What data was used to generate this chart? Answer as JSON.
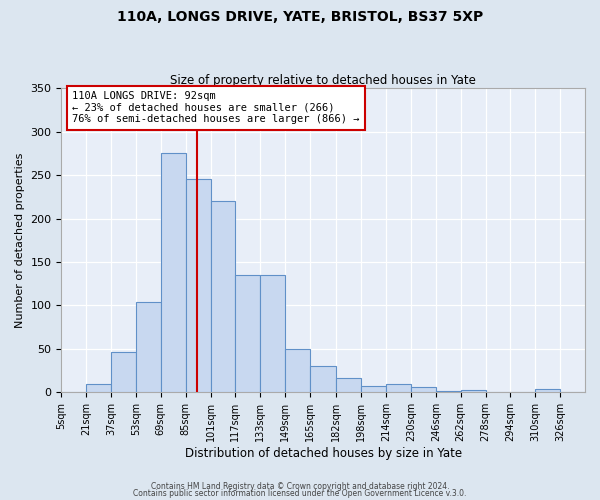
{
  "title1": "110A, LONGS DRIVE, YATE, BRISTOL, BS37 5XP",
  "title2": "Size of property relative to detached houses in Yate",
  "xlabel": "Distribution of detached houses by size in Yate",
  "ylabel": "Number of detached properties",
  "bin_labels": [
    "5sqm",
    "21sqm",
    "37sqm",
    "53sqm",
    "69sqm",
    "85sqm",
    "101sqm",
    "117sqm",
    "133sqm",
    "149sqm",
    "165sqm",
    "182sqm",
    "198sqm",
    "214sqm",
    "230sqm",
    "246sqm",
    "262sqm",
    "278sqm",
    "294sqm",
    "310sqm",
    "326sqm"
  ],
  "bin_edges": [
    5,
    21,
    37,
    53,
    69,
    85,
    101,
    117,
    133,
    149,
    165,
    182,
    198,
    214,
    230,
    246,
    262,
    278,
    294,
    310,
    326,
    342
  ],
  "bar_heights": [
    0,
    10,
    47,
    104,
    275,
    245,
    220,
    135,
    135,
    50,
    30,
    16,
    7,
    10,
    6,
    2,
    3,
    0,
    0,
    4,
    0
  ],
  "bar_color": "#c8d8f0",
  "bar_edge_color": "#6090c8",
  "vline_x": 92,
  "vline_color": "#cc0000",
  "annotation_title": "110A LONGS DRIVE: 92sqm",
  "annotation_line1": "← 23% of detached houses are smaller (266)",
  "annotation_line2": "76% of semi-detached houses are larger (866) →",
  "annotation_box_color": "#ffffff",
  "annotation_box_edge_color": "#cc0000",
  "ylim": [
    0,
    350
  ],
  "yticks": [
    0,
    50,
    100,
    150,
    200,
    250,
    300,
    350
  ],
  "footer1": "Contains HM Land Registry data © Crown copyright and database right 2024.",
  "footer2": "Contains public sector information licensed under the Open Government Licence v.3.0.",
  "bg_color": "#dce6f0",
  "plot_bg_color": "#e8eef8"
}
